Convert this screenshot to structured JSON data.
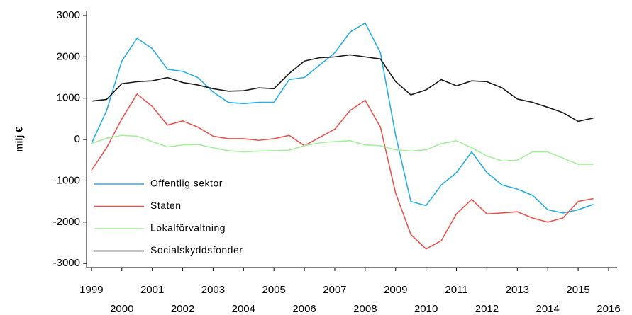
{
  "chart_data": {
    "type": "line",
    "y_label": "milj €",
    "x": [
      1999.0,
      1999.5,
      2000.0,
      2000.5,
      2001.0,
      2001.5,
      2002.0,
      2002.5,
      2003.0,
      2003.5,
      2004.0,
      2004.5,
      2005.0,
      2005.5,
      2006.0,
      2006.5,
      2007.0,
      2007.5,
      2008.0,
      2008.5,
      2009.0,
      2009.5,
      2010.0,
      2010.5,
      2011.0,
      2011.5,
      2012.0,
      2012.5,
      2013.0,
      2013.5,
      2014.0,
      2014.5,
      2015.0,
      2015.5
    ],
    "series": [
      {
        "name": "Offentlig sektor",
        "color": "#29aee6",
        "values": [
          -100,
          700,
          1900,
          2450,
          2200,
          1700,
          1650,
          1500,
          1150,
          900,
          870,
          900,
          900,
          1450,
          1500,
          1800,
          2100,
          2600,
          2820,
          2100,
          100,
          -1500,
          -1600,
          -1100,
          -800,
          -300,
          -800,
          -1100,
          -1200,
          -1350,
          -1700,
          -1780,
          -1700,
          -1570
        ]
      },
      {
        "name": "Staten",
        "color": "#e8554e",
        "values": [
          -750,
          -200,
          500,
          1100,
          800,
          350,
          450,
          300,
          80,
          20,
          20,
          -20,
          20,
          100,
          -150,
          50,
          250,
          700,
          950,
          300,
          -1300,
          -2300,
          -2650,
          -2450,
          -1800,
          -1450,
          -1800,
          -1780,
          -1750,
          -1900,
          -2000,
          -1900,
          -1500,
          -1430
        ]
      },
      {
        "name": "Lokalförvaltning",
        "color": "#a6ee9e",
        "values": [
          -100,
          30,
          100,
          80,
          -50,
          -180,
          -130,
          -120,
          -200,
          -270,
          -300,
          -280,
          -270,
          -260,
          -150,
          -80,
          -50,
          -30,
          -130,
          -150,
          -250,
          -280,
          -250,
          -100,
          -30,
          -200,
          -400,
          -520,
          -500,
          -300,
          -300,
          -450,
          -600,
          -600
        ]
      },
      {
        "name": "Socialskyddsfonder",
        "color": "#1a1a1a",
        "values": [
          930,
          970,
          1350,
          1400,
          1420,
          1500,
          1380,
          1320,
          1230,
          1170,
          1180,
          1250,
          1230,
          1600,
          1900,
          1980,
          2000,
          2050,
          2000,
          1950,
          1400,
          1080,
          1200,
          1450,
          1300,
          1420,
          1400,
          1250,
          980,
          900,
          780,
          650,
          440,
          520
        ]
      }
    ],
    "xlim": [
      1998.84,
      2016.28
    ],
    "xticks": [
      1999,
      2000,
      2001,
      2002,
      2003,
      2004,
      2005,
      2006,
      2007,
      2008,
      2009,
      2010,
      2011,
      2012,
      2013,
      2014,
      2015,
      2016
    ],
    "ylim": [
      -3100,
      3120
    ],
    "yticks": [
      -3000,
      -2000,
      -1000,
      0,
      1000,
      2000,
      3000
    ],
    "legend": "lower left",
    "grid": false
  }
}
